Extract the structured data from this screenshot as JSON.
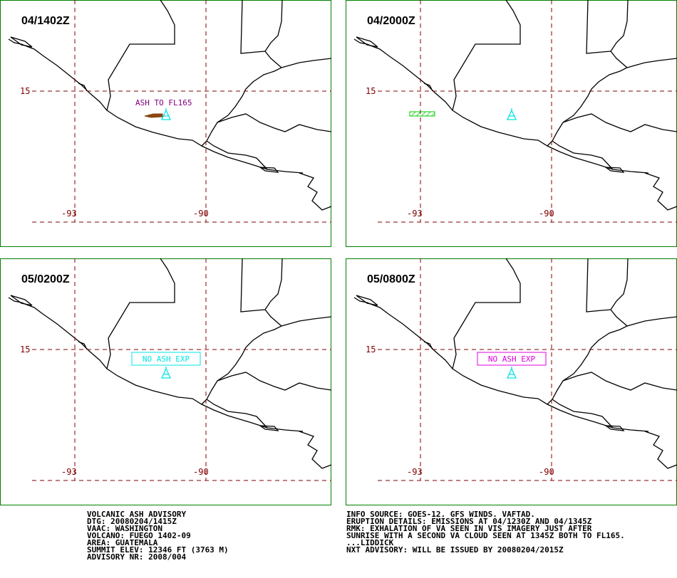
{
  "panels": [
    {
      "title": "04/1402Z",
      "annotation": "ASH TO FL165"
    },
    {
      "title": "04/2000Z"
    },
    {
      "title": "05/0200Z",
      "annotation": "NO ASH EXP"
    },
    {
      "title": "05/0800Z",
      "annotation": "NO ASH EXP"
    }
  ],
  "grid_labels": {
    "lat": "15",
    "lon_west": "-93",
    "lon_east": "-90"
  },
  "advisory_left": [
    "VOLCANIC ASH ADVISORY",
    "DTG: 20080204/1415Z",
    "VAAC: WASHINGTON",
    "VOLCANO: FUEGO 1402-09",
    "AREA: GUATEMALA",
    "SUMMIT ELEV: 12346 FT (3763 M)",
    "ADVISORY NR: 2008/004"
  ],
  "advisory_right": [
    "INFO SOURCE: GOES-12. GFS WINDS. VAFTAD.",
    "ERUPTION DETAILS: EMISSIONS AT 04/1230Z AND 04/1345Z",
    "RMK: EXHALATION OF VA SEEN IN VIS IMAGERY JUST AFTER",
    "SUNRISE WITH A SECOND VA CLOUD SEEN AT 1345Z BOTH TO FL165.",
    "...LIDDICK",
    "NXT ADVISORY: WILL BE ISSUED BY 20080204/2015Z"
  ]
}
